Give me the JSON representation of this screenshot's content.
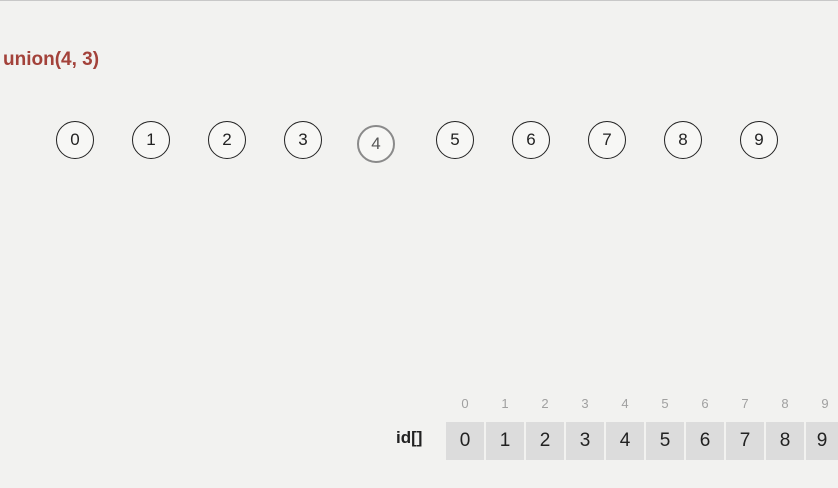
{
  "operation": "union(4, 3)",
  "nodes": [
    "0",
    "1",
    "2",
    "3",
    "4",
    "5",
    "6",
    "7",
    "8",
    "9"
  ],
  "highlighted_node": "4",
  "array": {
    "name": "id[]",
    "indices": [
      "0",
      "1",
      "2",
      "3",
      "4",
      "5",
      "6",
      "7",
      "8",
      "9"
    ],
    "values": [
      "0",
      "1",
      "2",
      "3",
      "4",
      "5",
      "6",
      "7",
      "8",
      "9"
    ]
  },
  "colors": {
    "operation_text": "#a3423a",
    "highlight_border": "#8a8a8a",
    "cell_fill": "#dcdcdc",
    "background": "#f2f2f0"
  }
}
